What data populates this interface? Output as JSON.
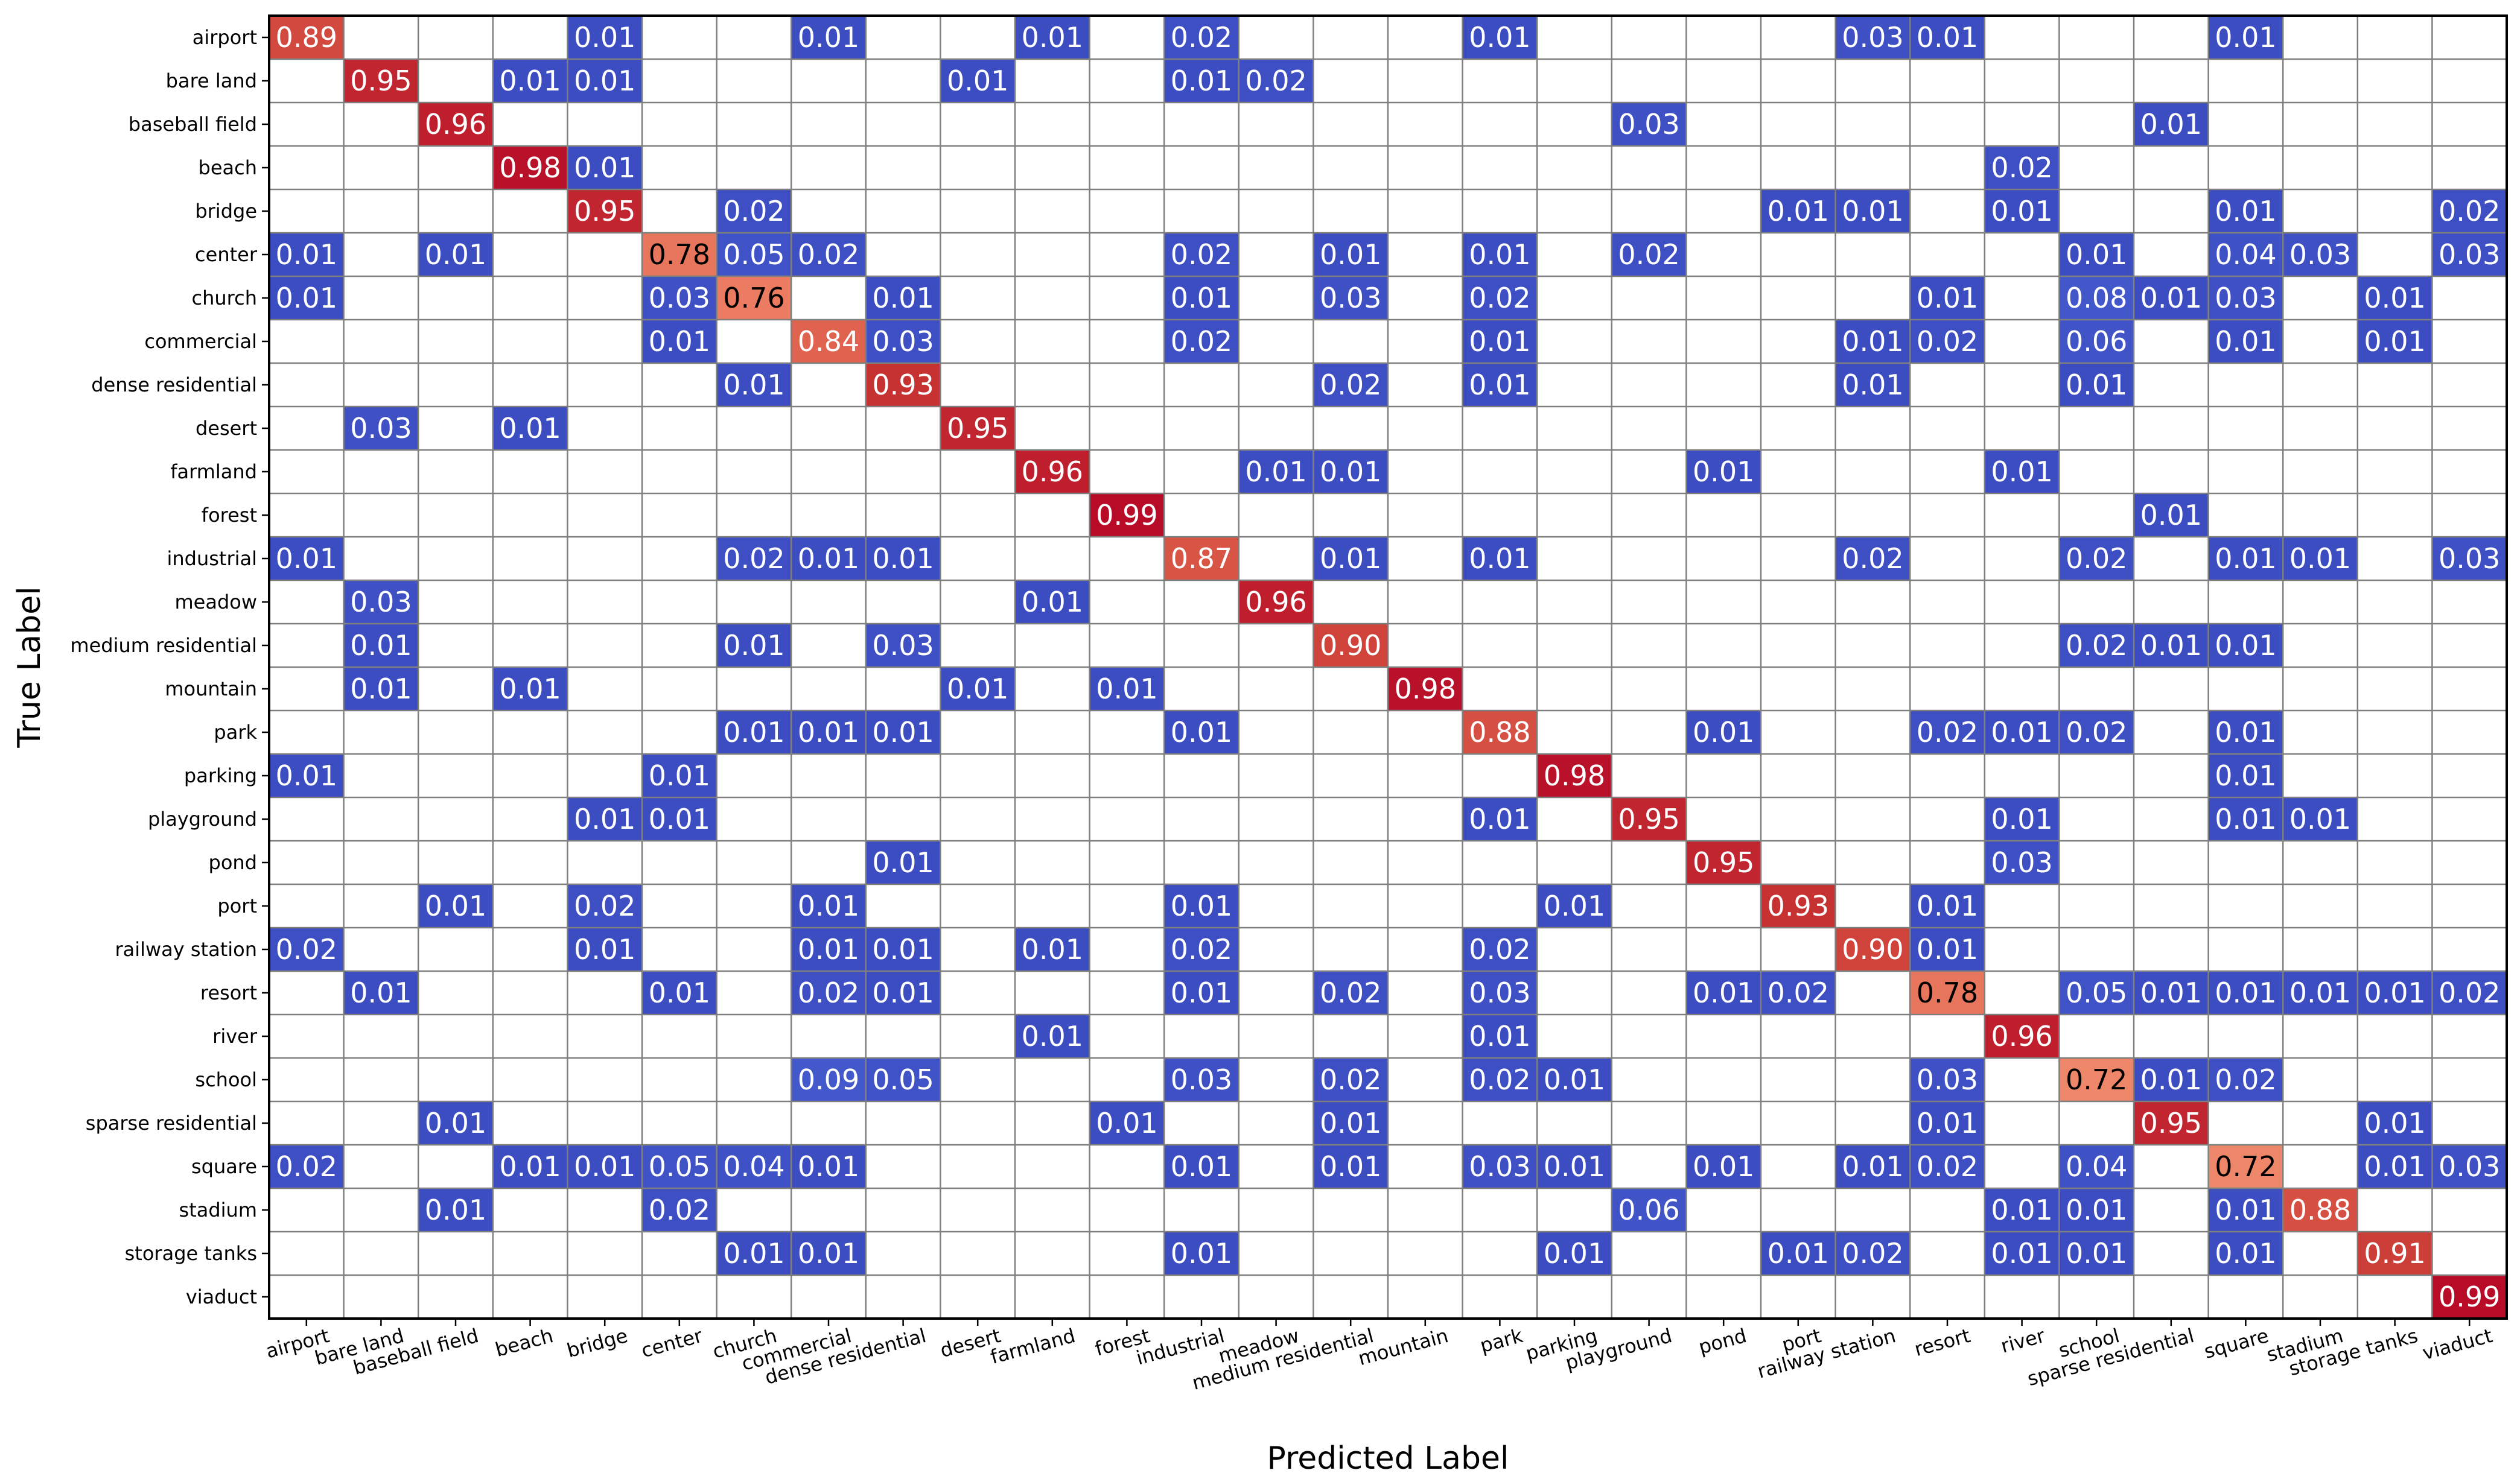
{
  "chart_data": {
    "type": "heatmap",
    "title": "",
    "xlabel": "Predicted Label",
    "ylabel": "True Label",
    "labels": [
      "airport",
      "bare land",
      "baseball field",
      "beach",
      "bridge",
      "center",
      "church",
      "commercial",
      "dense residential",
      "desert",
      "farmland",
      "forest",
      "industrial",
      "meadow",
      "medium residential",
      "mountain",
      "park",
      "parking",
      "playground",
      "pond",
      "port",
      "railway station",
      "resort",
      "river",
      "school",
      "sparse residential",
      "square",
      "stadium",
      "storage tanks",
      "viaduct"
    ],
    "value_range": [
      0,
      1
    ],
    "colormap": "coolwarm",
    "cells": [
      [
        0,
        0,
        "0.89"
      ],
      [
        0,
        4,
        "0.01"
      ],
      [
        0,
        7,
        "0.01"
      ],
      [
        0,
        10,
        "0.01"
      ],
      [
        0,
        12,
        "0.02"
      ],
      [
        0,
        16,
        "0.01"
      ],
      [
        0,
        21,
        "0.03"
      ],
      [
        0,
        22,
        "0.01"
      ],
      [
        0,
        26,
        "0.01"
      ],
      [
        1,
        1,
        "0.95"
      ],
      [
        1,
        3,
        "0.01"
      ],
      [
        1,
        4,
        "0.01"
      ],
      [
        1,
        9,
        "0.01"
      ],
      [
        1,
        12,
        "0.01"
      ],
      [
        1,
        13,
        "0.02"
      ],
      [
        2,
        2,
        "0.96"
      ],
      [
        2,
        18,
        "0.03"
      ],
      [
        2,
        25,
        "0.01"
      ],
      [
        3,
        3,
        "0.98"
      ],
      [
        3,
        4,
        "0.01"
      ],
      [
        3,
        23,
        "0.02"
      ],
      [
        4,
        4,
        "0.95"
      ],
      [
        4,
        6,
        "0.02"
      ],
      [
        4,
        20,
        "0.01"
      ],
      [
        4,
        21,
        "0.01"
      ],
      [
        4,
        23,
        "0.01"
      ],
      [
        4,
        26,
        "0.01"
      ],
      [
        4,
        29,
        "0.02"
      ],
      [
        5,
        0,
        "0.01"
      ],
      [
        5,
        2,
        "0.01"
      ],
      [
        5,
        5,
        "0.78"
      ],
      [
        5,
        6,
        "0.05"
      ],
      [
        5,
        7,
        "0.02"
      ],
      [
        5,
        12,
        "0.02"
      ],
      [
        5,
        14,
        "0.01"
      ],
      [
        5,
        16,
        "0.01"
      ],
      [
        5,
        18,
        "0.02"
      ],
      [
        5,
        24,
        "0.01"
      ],
      [
        5,
        26,
        "0.04"
      ],
      [
        5,
        27,
        "0.03"
      ],
      [
        5,
        29,
        "0.03"
      ],
      [
        6,
        0,
        "0.01"
      ],
      [
        6,
        5,
        "0.03"
      ],
      [
        6,
        6,
        "0.76"
      ],
      [
        6,
        8,
        "0.01"
      ],
      [
        6,
        12,
        "0.01"
      ],
      [
        6,
        14,
        "0.03"
      ],
      [
        6,
        16,
        "0.02"
      ],
      [
        6,
        22,
        "0.01"
      ],
      [
        6,
        24,
        "0.08"
      ],
      [
        6,
        25,
        "0.01"
      ],
      [
        6,
        26,
        "0.03"
      ],
      [
        6,
        28,
        "0.01"
      ],
      [
        7,
        5,
        "0.01"
      ],
      [
        7,
        7,
        "0.84"
      ],
      [
        7,
        8,
        "0.03"
      ],
      [
        7,
        12,
        "0.02"
      ],
      [
        7,
        16,
        "0.01"
      ],
      [
        7,
        21,
        "0.01"
      ],
      [
        7,
        22,
        "0.02"
      ],
      [
        7,
        24,
        "0.06"
      ],
      [
        7,
        26,
        "0.01"
      ],
      [
        7,
        28,
        "0.01"
      ],
      [
        8,
        6,
        "0.01"
      ],
      [
        8,
        8,
        "0.93"
      ],
      [
        8,
        14,
        "0.02"
      ],
      [
        8,
        16,
        "0.01"
      ],
      [
        8,
        21,
        "0.01"
      ],
      [
        8,
        24,
        "0.01"
      ],
      [
        9,
        1,
        "0.03"
      ],
      [
        9,
        3,
        "0.01"
      ],
      [
        9,
        9,
        "0.95"
      ],
      [
        10,
        10,
        "0.96"
      ],
      [
        10,
        13,
        "0.01"
      ],
      [
        10,
        14,
        "0.01"
      ],
      [
        10,
        19,
        "0.01"
      ],
      [
        10,
        23,
        "0.01"
      ],
      [
        11,
        11,
        "0.99"
      ],
      [
        11,
        25,
        "0.01"
      ],
      [
        12,
        0,
        "0.01"
      ],
      [
        12,
        6,
        "0.02"
      ],
      [
        12,
        7,
        "0.01"
      ],
      [
        12,
        8,
        "0.01"
      ],
      [
        12,
        12,
        "0.87"
      ],
      [
        12,
        14,
        "0.01"
      ],
      [
        12,
        16,
        "0.01"
      ],
      [
        12,
        21,
        "0.02"
      ],
      [
        12,
        24,
        "0.02"
      ],
      [
        12,
        26,
        "0.01"
      ],
      [
        12,
        27,
        "0.01"
      ],
      [
        12,
        29,
        "0.03"
      ],
      [
        13,
        1,
        "0.03"
      ],
      [
        13,
        10,
        "0.01"
      ],
      [
        13,
        13,
        "0.96"
      ],
      [
        14,
        1,
        "0.01"
      ],
      [
        14,
        6,
        "0.01"
      ],
      [
        14,
        8,
        "0.03"
      ],
      [
        14,
        14,
        "0.90"
      ],
      [
        14,
        24,
        "0.02"
      ],
      [
        14,
        25,
        "0.01"
      ],
      [
        14,
        26,
        "0.01"
      ],
      [
        15,
        1,
        "0.01"
      ],
      [
        15,
        3,
        "0.01"
      ],
      [
        15,
        9,
        "0.01"
      ],
      [
        15,
        11,
        "0.01"
      ],
      [
        15,
        15,
        "0.98"
      ],
      [
        16,
        6,
        "0.01"
      ],
      [
        16,
        7,
        "0.01"
      ],
      [
        16,
        8,
        "0.01"
      ],
      [
        16,
        12,
        "0.01"
      ],
      [
        16,
        16,
        "0.88"
      ],
      [
        16,
        19,
        "0.01"
      ],
      [
        16,
        22,
        "0.02"
      ],
      [
        16,
        23,
        "0.01"
      ],
      [
        16,
        24,
        "0.02"
      ],
      [
        16,
        26,
        "0.01"
      ],
      [
        17,
        0,
        "0.01"
      ],
      [
        17,
        5,
        "0.01"
      ],
      [
        17,
        17,
        "0.98"
      ],
      [
        17,
        26,
        "0.01"
      ],
      [
        18,
        4,
        "0.01"
      ],
      [
        18,
        5,
        "0.01"
      ],
      [
        18,
        16,
        "0.01"
      ],
      [
        18,
        18,
        "0.95"
      ],
      [
        18,
        23,
        "0.01"
      ],
      [
        18,
        26,
        "0.01"
      ],
      [
        18,
        27,
        "0.01"
      ],
      [
        19,
        8,
        "0.01"
      ],
      [
        19,
        19,
        "0.95"
      ],
      [
        19,
        23,
        "0.03"
      ],
      [
        20,
        2,
        "0.01"
      ],
      [
        20,
        4,
        "0.02"
      ],
      [
        20,
        7,
        "0.01"
      ],
      [
        20,
        12,
        "0.01"
      ],
      [
        20,
        17,
        "0.01"
      ],
      [
        20,
        20,
        "0.93"
      ],
      [
        20,
        22,
        "0.01"
      ],
      [
        21,
        0,
        "0.02"
      ],
      [
        21,
        4,
        "0.01"
      ],
      [
        21,
        7,
        "0.01"
      ],
      [
        21,
        8,
        "0.01"
      ],
      [
        21,
        10,
        "0.01"
      ],
      [
        21,
        12,
        "0.02"
      ],
      [
        21,
        16,
        "0.02"
      ],
      [
        21,
        21,
        "0.90"
      ],
      [
        21,
        22,
        "0.01"
      ],
      [
        22,
        1,
        "0.01"
      ],
      [
        22,
        5,
        "0.01"
      ],
      [
        22,
        7,
        "0.02"
      ],
      [
        22,
        8,
        "0.01"
      ],
      [
        22,
        12,
        "0.01"
      ],
      [
        22,
        14,
        "0.02"
      ],
      [
        22,
        16,
        "0.03"
      ],
      [
        22,
        19,
        "0.01"
      ],
      [
        22,
        20,
        "0.02"
      ],
      [
        22,
        22,
        "0.78"
      ],
      [
        22,
        24,
        "0.05"
      ],
      [
        22,
        25,
        "0.01"
      ],
      [
        22,
        26,
        "0.01"
      ],
      [
        22,
        27,
        "0.01"
      ],
      [
        22,
        28,
        "0.01"
      ],
      [
        22,
        29,
        "0.02"
      ],
      [
        23,
        10,
        "0.01"
      ],
      [
        23,
        16,
        "0.01"
      ],
      [
        23,
        23,
        "0.96"
      ],
      [
        24,
        7,
        "0.09"
      ],
      [
        24,
        8,
        "0.05"
      ],
      [
        24,
        12,
        "0.03"
      ],
      [
        24,
        14,
        "0.02"
      ],
      [
        24,
        16,
        "0.02"
      ],
      [
        24,
        17,
        "0.01"
      ],
      [
        24,
        22,
        "0.03"
      ],
      [
        24,
        24,
        "0.72"
      ],
      [
        24,
        25,
        "0.01"
      ],
      [
        24,
        26,
        "0.02"
      ],
      [
        25,
        2,
        "0.01"
      ],
      [
        25,
        11,
        "0.01"
      ],
      [
        25,
        14,
        "0.01"
      ],
      [
        25,
        22,
        "0.01"
      ],
      [
        25,
        25,
        "0.95"
      ],
      [
        25,
        28,
        "0.01"
      ],
      [
        26,
        0,
        "0.02"
      ],
      [
        26,
        3,
        "0.01"
      ],
      [
        26,
        4,
        "0.01"
      ],
      [
        26,
        5,
        "0.05"
      ],
      [
        26,
        6,
        "0.04"
      ],
      [
        26,
        7,
        "0.01"
      ],
      [
        26,
        12,
        "0.01"
      ],
      [
        26,
        14,
        "0.01"
      ],
      [
        26,
        16,
        "0.03"
      ],
      [
        26,
        17,
        "0.01"
      ],
      [
        26,
        19,
        "0.01"
      ],
      [
        26,
        21,
        "0.01"
      ],
      [
        26,
        22,
        "0.02"
      ],
      [
        26,
        24,
        "0.04"
      ],
      [
        26,
        26,
        "0.72"
      ],
      [
        26,
        28,
        "0.01"
      ],
      [
        26,
        29,
        "0.03"
      ],
      [
        27,
        2,
        "0.01"
      ],
      [
        27,
        5,
        "0.02"
      ],
      [
        27,
        18,
        "0.06"
      ],
      [
        27,
        23,
        "0.01"
      ],
      [
        27,
        24,
        "0.01"
      ],
      [
        27,
        26,
        "0.01"
      ],
      [
        27,
        27,
        "0.88"
      ],
      [
        28,
        6,
        "0.01"
      ],
      [
        28,
        7,
        "0.01"
      ],
      [
        28,
        12,
        "0.01"
      ],
      [
        28,
        17,
        "0.01"
      ],
      [
        28,
        20,
        "0.01"
      ],
      [
        28,
        21,
        "0.02"
      ],
      [
        28,
        23,
        "0.01"
      ],
      [
        28,
        24,
        "0.01"
      ],
      [
        28,
        26,
        "0.01"
      ],
      [
        28,
        28,
        "0.91"
      ],
      [
        29,
        29,
        "0.99"
      ]
    ]
  }
}
